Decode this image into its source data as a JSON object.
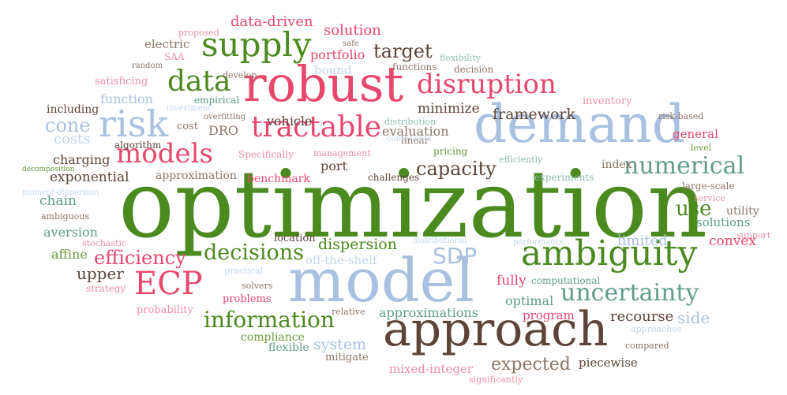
{
  "colors": {
    "background": "#ffffff",
    "green": "#4a8a1e",
    "green_light": "#6a9a3a",
    "pink": "#e8476d",
    "pink_light": "#ee8fa8",
    "blue": "#a9c1e0",
    "blue_light": "#c4d6ea",
    "brown": "#5e4438",
    "brown_light": "#8d7466",
    "teal": "#5f9c8c",
    "teal_light": "#8fbcb2"
  },
  "words": [
    {
      "text": "optimization",
      "color": "green"
    },
    {
      "text": "approach",
      "color": "brown"
    },
    {
      "text": "model",
      "color": "blue"
    },
    {
      "text": "demand",
      "color": "blue"
    },
    {
      "text": "robust",
      "color": "pink"
    },
    {
      "text": "ambiguity",
      "color": "green"
    },
    {
      "text": "supply",
      "color": "green"
    },
    {
      "text": "tractable",
      "color": "pink"
    },
    {
      "text": "risk",
      "color": "blue"
    },
    {
      "text": "models",
      "color": "pink"
    },
    {
      "text": "data",
      "color": "green"
    },
    {
      "text": "disruption",
      "color": "pink"
    },
    {
      "text": "ECP",
      "color": "pink"
    },
    {
      "text": "uncertainty",
      "color": "teal"
    },
    {
      "text": "numerical",
      "color": "teal"
    },
    {
      "text": "information",
      "color": "green"
    },
    {
      "text": "decisions",
      "color": "green"
    },
    {
      "text": "capacity",
      "color": "brown"
    },
    {
      "text": "efficiency",
      "color": "pink"
    },
    {
      "text": "target",
      "color": "brown"
    },
    {
      "text": "SDP",
      "color": "blue"
    },
    {
      "text": "expected",
      "color": "brown_light"
    },
    {
      "text": "approximations",
      "color": "teal"
    },
    {
      "text": "cone",
      "color": "blue"
    },
    {
      "text": "framework",
      "color": "brown"
    },
    {
      "text": "use",
      "color": "green"
    },
    {
      "text": "solution",
      "color": "pink"
    },
    {
      "text": "system",
      "color": "blue"
    },
    {
      "text": "data-driven",
      "color": "pink"
    },
    {
      "text": "dispersion",
      "color": "green"
    },
    {
      "text": "recourse",
      "color": "brown"
    },
    {
      "text": "minimize",
      "color": "brown"
    },
    {
      "text": "upper",
      "color": "brown"
    },
    {
      "text": "side",
      "color": "blue"
    },
    {
      "text": "exponential",
      "color": "brown"
    },
    {
      "text": "portfolio",
      "color": "pink"
    },
    {
      "text": "fully",
      "color": "pink"
    },
    {
      "text": "port",
      "color": "brown"
    },
    {
      "text": "limited",
      "color": "blue"
    },
    {
      "text": "convex",
      "color": "pink"
    },
    {
      "text": "chain",
      "color": "teal"
    },
    {
      "text": "vehicle",
      "color": "brown"
    },
    {
      "text": "evaluation",
      "color": "brown_light"
    },
    {
      "text": "costs",
      "color": "blue_light"
    },
    {
      "text": "optimal",
      "color": "teal"
    },
    {
      "text": "aversion",
      "color": "teal"
    },
    {
      "text": "function",
      "color": "blue"
    },
    {
      "text": "mixed-integer",
      "color": "pink_light"
    },
    {
      "text": "DRO",
      "color": "brown_light"
    },
    {
      "text": "index",
      "color": "brown_light"
    },
    {
      "text": "piecewise",
      "color": "brown"
    },
    {
      "text": "affine",
      "color": "green_light"
    },
    {
      "text": "charging",
      "color": "brown"
    },
    {
      "text": "program",
      "color": "pink"
    },
    {
      "text": "solutions",
      "color": "teal"
    },
    {
      "text": "general",
      "color": "pink"
    },
    {
      "text": "electric",
      "color": "brown_light"
    },
    {
      "text": "bound",
      "color": "blue_light"
    },
    {
      "text": "cost",
      "color": "brown_light"
    },
    {
      "text": "including",
      "color": "brown"
    },
    {
      "text": "utility",
      "color": "brown_light"
    },
    {
      "text": "inventory",
      "color": "pink_light"
    },
    {
      "text": "off-the-shelf",
      "color": "blue_light"
    },
    {
      "text": "challenges",
      "color": "brown"
    },
    {
      "text": "problems",
      "color": "pink"
    },
    {
      "text": "compliance",
      "color": "green_light"
    },
    {
      "text": "flexible",
      "color": "teal"
    },
    {
      "text": "mitigate",
      "color": "brown_light"
    },
    {
      "text": "benchmark",
      "color": "pink"
    },
    {
      "text": "approximation",
      "color": "brown_light"
    },
    {
      "text": "satisficing",
      "color": "pink_light"
    },
    {
      "text": "decision",
      "color": "brown_light"
    },
    {
      "text": "functions",
      "color": "brown_light"
    },
    {
      "text": "location",
      "color": "brown"
    },
    {
      "text": "large-scale",
      "color": "brown_light"
    },
    {
      "text": "computational",
      "color": "teal"
    },
    {
      "text": "probability",
      "color": "pink_light"
    },
    {
      "text": "experiments",
      "color": "teal_light"
    },
    {
      "text": "empirical",
      "color": "teal"
    },
    {
      "text": "algorithm",
      "color": "brown"
    },
    {
      "text": "Specifically",
      "color": "pink_light"
    },
    {
      "text": "management",
      "color": "pink_light"
    },
    {
      "text": "pricing",
      "color": "green_light"
    },
    {
      "text": "efficiently",
      "color": "teal_light"
    },
    {
      "text": "distribution",
      "color": "teal_light"
    },
    {
      "text": "linear",
      "color": "brown_light"
    },
    {
      "text": "develop",
      "color": "brown_light"
    },
    {
      "text": "proposed",
      "color": "pink_light"
    },
    {
      "text": "SAA",
      "color": "pink_light"
    },
    {
      "text": "random",
      "color": "brown_light"
    },
    {
      "text": "safe",
      "color": "brown_light"
    },
    {
      "text": "flexibility",
      "color": "teal_light"
    },
    {
      "text": "investment",
      "color": "blue_light"
    },
    {
      "text": "overfitting",
      "color": "brown_light"
    },
    {
      "text": "risk-based",
      "color": "brown_light"
    },
    {
      "text": "level",
      "color": "green_light"
    },
    {
      "text": "service",
      "color": "pink_light"
    },
    {
      "text": "support",
      "color": "pink_light"
    },
    {
      "text": "decomposition",
      "color": "green_light"
    },
    {
      "text": "moment-dispersion",
      "color": "blue_light"
    },
    {
      "text": "ambiguous",
      "color": "brown_light"
    },
    {
      "text": "stochastic",
      "color": "pink_light"
    },
    {
      "text": "distributional",
      "color": "blue_light"
    },
    {
      "text": "performance",
      "color": "blue_light"
    },
    {
      "text": "practical",
      "color": "blue_light"
    },
    {
      "text": "solvers",
      "color": "brown_light"
    },
    {
      "text": "strategy",
      "color": "pink_light"
    },
    {
      "text": "relative",
      "color": "brown_light"
    },
    {
      "text": "approaches",
      "color": "blue_light"
    },
    {
      "text": "compared",
      "color": "brown_light"
    },
    {
      "text": "significantly",
      "color": "pink_light"
    },
    {
      "text": "constraints",
      "color": "blue_light"
    }
  ]
}
